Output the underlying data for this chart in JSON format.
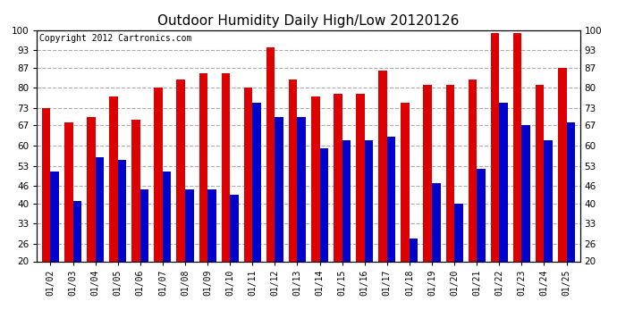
{
  "title": "Outdoor Humidity Daily High/Low 20120126",
  "copyright": "Copyright 2012 Cartronics.com",
  "dates": [
    "01/02",
    "01/03",
    "01/04",
    "01/05",
    "01/06",
    "01/07",
    "01/08",
    "01/09",
    "01/10",
    "01/11",
    "01/12",
    "01/13",
    "01/14",
    "01/15",
    "01/16",
    "01/17",
    "01/18",
    "01/19",
    "01/20",
    "01/21",
    "01/22",
    "01/23",
    "01/24",
    "01/25"
  ],
  "highs": [
    73,
    68,
    70,
    77,
    69,
    80,
    83,
    85,
    85,
    80,
    94,
    83,
    77,
    78,
    78,
    86,
    75,
    81,
    81,
    83,
    99,
    99,
    81,
    87
  ],
  "lows": [
    51,
    41,
    56,
    55,
    45,
    51,
    45,
    45,
    43,
    75,
    70,
    70,
    59,
    62,
    62,
    63,
    28,
    47,
    40,
    52,
    75,
    67,
    62,
    68
  ],
  "high_color": "#dd0000",
  "low_color": "#0000cc",
  "bg_color": "#ffffff",
  "plot_bg_color": "#ffffff",
  "grid_color": "#aaaaaa",
  "ymin": 20,
  "ymax": 100,
  "yticks": [
    20,
    26,
    33,
    40,
    46,
    53,
    60,
    67,
    73,
    80,
    87,
    93,
    100
  ],
  "bar_width": 0.38,
  "title_fontsize": 11,
  "copyright_fontsize": 7
}
